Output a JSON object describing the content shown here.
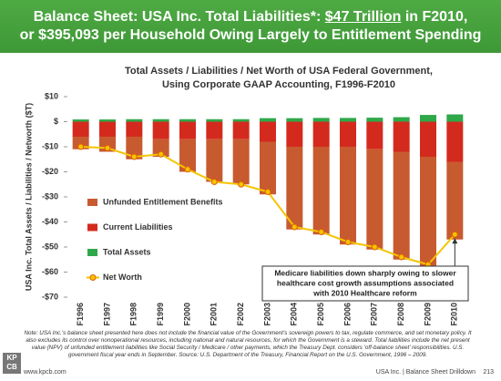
{
  "header": {
    "title_part1": "Balance Sheet: USA Inc. Total Liabilities*: ",
    "title_highlight": "$47 Trillion",
    "title_part2": " in F2010,",
    "title_line2": "or $395,093 per Household Owing Largely to Entitlement Spending"
  },
  "chart_data": {
    "type": "bar",
    "title_lines": [
      "Total Assets / Liabilities / Net Worth of USA Federal Government,",
      "Using Corporate GAAP Accounting, F1996-F2010"
    ],
    "y_label": "USA Inc. Total Assets / Liabilities / Networth ($T)",
    "categories": [
      "F1996",
      "F1997",
      "F1998",
      "F1999",
      "F2000",
      "F2001",
      "F2002",
      "F2003",
      "F2004",
      "F2005",
      "F2006",
      "F2007",
      "F2008",
      "F2009",
      "F2010"
    ],
    "series": [
      {
        "name": "Total Assets",
        "color": "#2fa84a",
        "values": [
          0.9,
          0.9,
          1.0,
          1.0,
          1.0,
          1.0,
          1.0,
          1.4,
          1.4,
          1.5,
          1.5,
          1.6,
          1.8,
          2.7,
          2.9
        ]
      },
      {
        "name": "Current Liabilities",
        "color": "#d42a1e",
        "values": [
          -6,
          -6,
          -6,
          -7,
          -7,
          -7,
          -7,
          -8,
          -10,
          -10,
          -10,
          -11,
          -12,
          -14,
          -16
        ]
      },
      {
        "name": "Unfunded Entitlement Benefits",
        "color": "#c85a30",
        "values": [
          -5,
          -6,
          -9,
          -7,
          -13,
          -17,
          -18,
          -21,
          -33,
          -35,
          -39,
          -40,
          -43,
          -45,
          -31
        ]
      },
      {
        "name": "Net Worth",
        "type": "line",
        "color": "#f5c400",
        "values": [
          -10,
          -10.5,
          -14,
          -13,
          -19,
          -24,
          -25,
          -28,
          -42,
          -44,
          -48,
          -50,
          -54,
          -57,
          -45
        ]
      }
    ],
    "ylim": [
      -70,
      10
    ],
    "yticks": [
      {
        "value": 10,
        "label": "$10"
      },
      {
        "value": 0,
        "label": "$"
      },
      {
        "value": -10,
        "label": "-$10"
      },
      {
        "value": -20,
        "label": "-$20"
      },
      {
        "value": -30,
        "label": "-$30"
      },
      {
        "value": -40,
        "label": "-$40"
      },
      {
        "value": -50,
        "label": "-$50"
      },
      {
        "value": -60,
        "label": "-$60"
      },
      {
        "value": -70,
        "label": "-$70"
      }
    ],
    "grid": false,
    "annotation_lines": [
      "Medicare liabilities down sharply owing to slower",
      "healthcare cost growth assumptions associated",
      "with 2010 Healthcare reform"
    ]
  },
  "note": "Note: USA Inc.'s balance sheet presented here does not include the financial value of the Government's sovereign powers to tax, regulate commerce, and set monetary policy. It also excludes its control over nonoperational resources, including national and natural resources, for which the Government is a steward. Total liabilities include the net present value (NPV) of unfunded entitlement liabilities like Social Security / Medicare / other payments, which the Treasury Dept. considers 'off-balance sheet' responsibilities. U.S. government fiscal year ends in September. Source: U.S. Department of the Treasury, Financial Report on the U.S. Government, 1996 – 2009.",
  "footer": {
    "logo_top": "KP",
    "logo_bottom": "CB",
    "url": "www.kpcb.com",
    "section": "USA Inc. | Balance Sheet Drilldown",
    "page": "213"
  }
}
